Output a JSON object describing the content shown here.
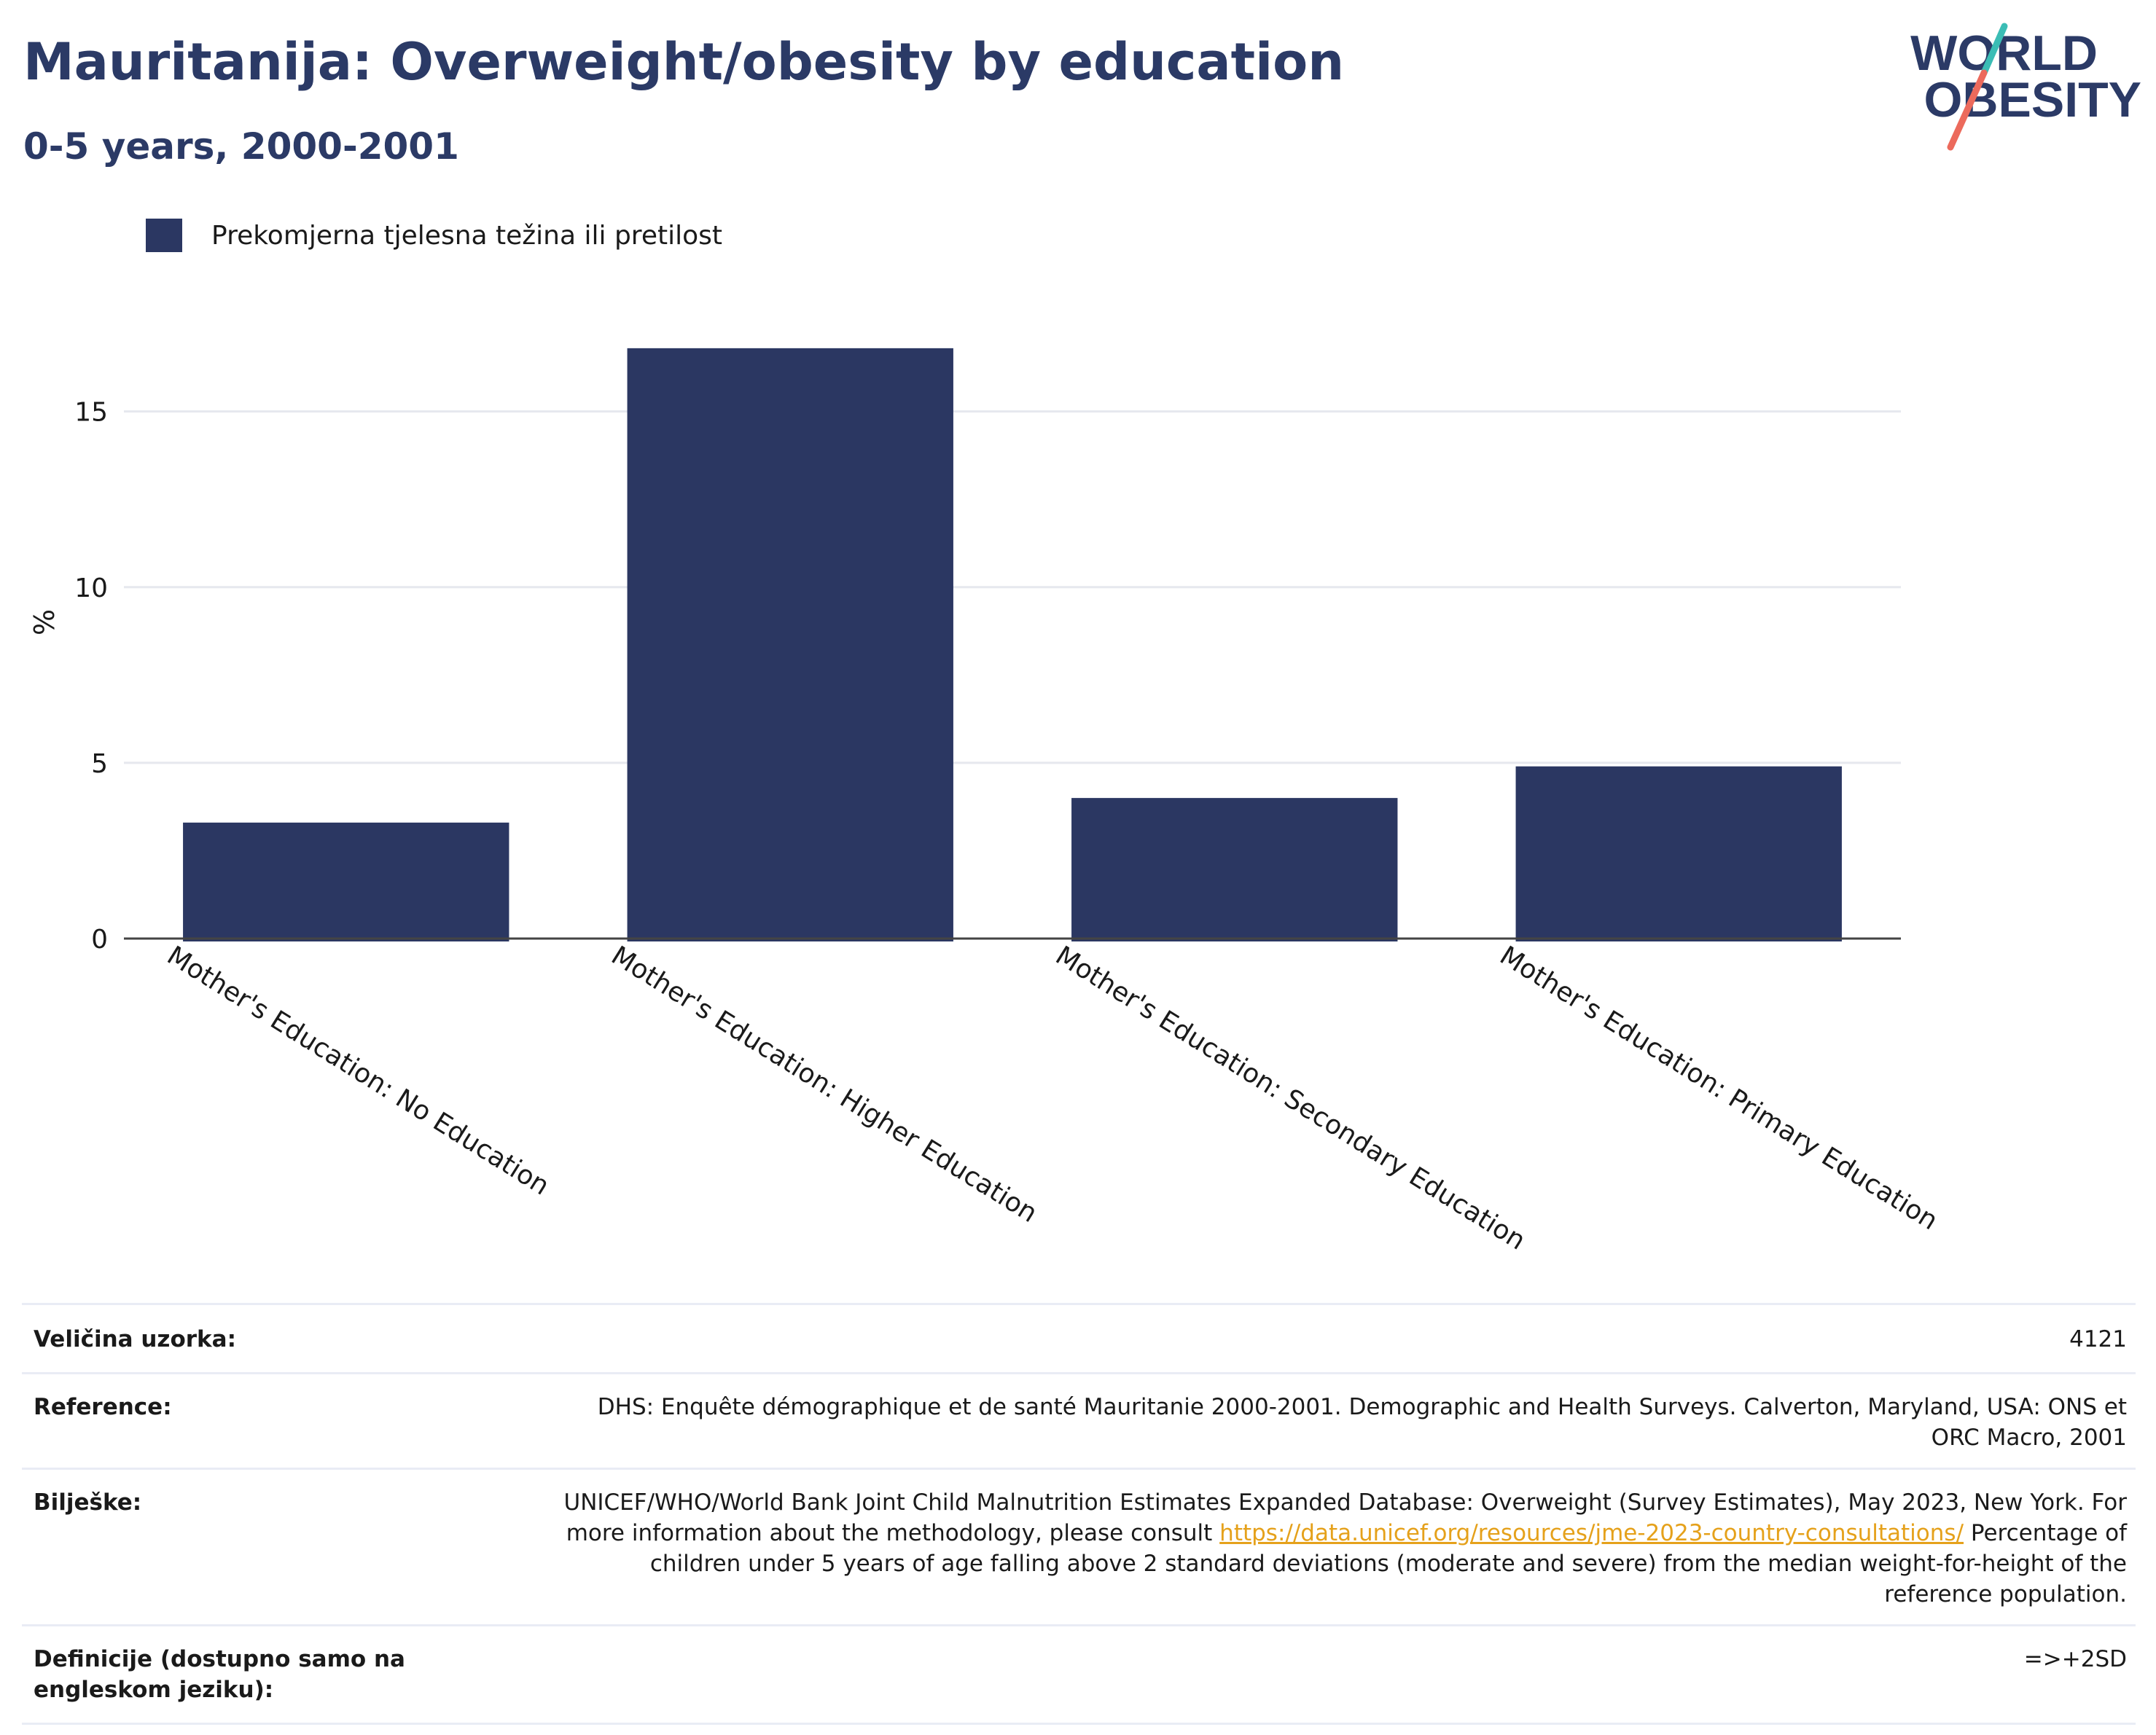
{
  "header": {
    "title": "Mauritanija: Overweight/obesity by education",
    "subtitle": "0-5 years, 2000-2001"
  },
  "logo": {
    "line1": "WORLD",
    "line2": "OBESITY"
  },
  "colors": {
    "bar": "#2b3762",
    "title": "#2b3a66",
    "logo_teal": "#3bbdb5",
    "logo_coral": "#ec6a5c",
    "link": "#e5a11b"
  },
  "chart_data": {
    "type": "bar",
    "categories": [
      "Mother's Education: No Education",
      "Mother's Education: Higher Education",
      "Mother's Education: Secondary Education",
      "Mother's Education: Primary Education"
    ],
    "series": [
      {
        "name": "Prekomjerna tjelesna težina ili pretilost",
        "values": [
          3.3,
          16.8,
          4.0,
          4.9
        ]
      }
    ],
    "ylabel": "%",
    "ylim": [
      0,
      18
    ],
    "yticks": [
      0,
      5,
      10,
      15
    ],
    "grid": true,
    "legend_position": "top-left"
  },
  "info": {
    "sample_size_label": "Veličina uzorka:",
    "sample_size_value": "4121",
    "reference_label": "Reference:",
    "reference_value": "DHS: Enquête démographique et de santé Mauritanie 2000-2001. Demographic and Health Surveys. Calverton, Maryland, USA: ONS et ORC Macro, 2001",
    "notes_label": "Bilješke:",
    "notes_text_1": "UNICEF/WHO/World Bank Joint Child Malnutrition Estimates Expanded Database: Overweight (Survey Estimates), May 2023, New York. For more information about the methodology, please consult",
    "notes_link": "https://data.unicef.org/resources/jme-2023-country-consultations/",
    "notes_text_2": "Percentage of children under 5 years of age falling above 2 standard deviations (moderate and severe) from the median weight-for-height of the reference population.",
    "definitions_label": "Definicije (dostupno samo na engleskom jeziku):",
    "definitions_value": "=>+2SD"
  }
}
